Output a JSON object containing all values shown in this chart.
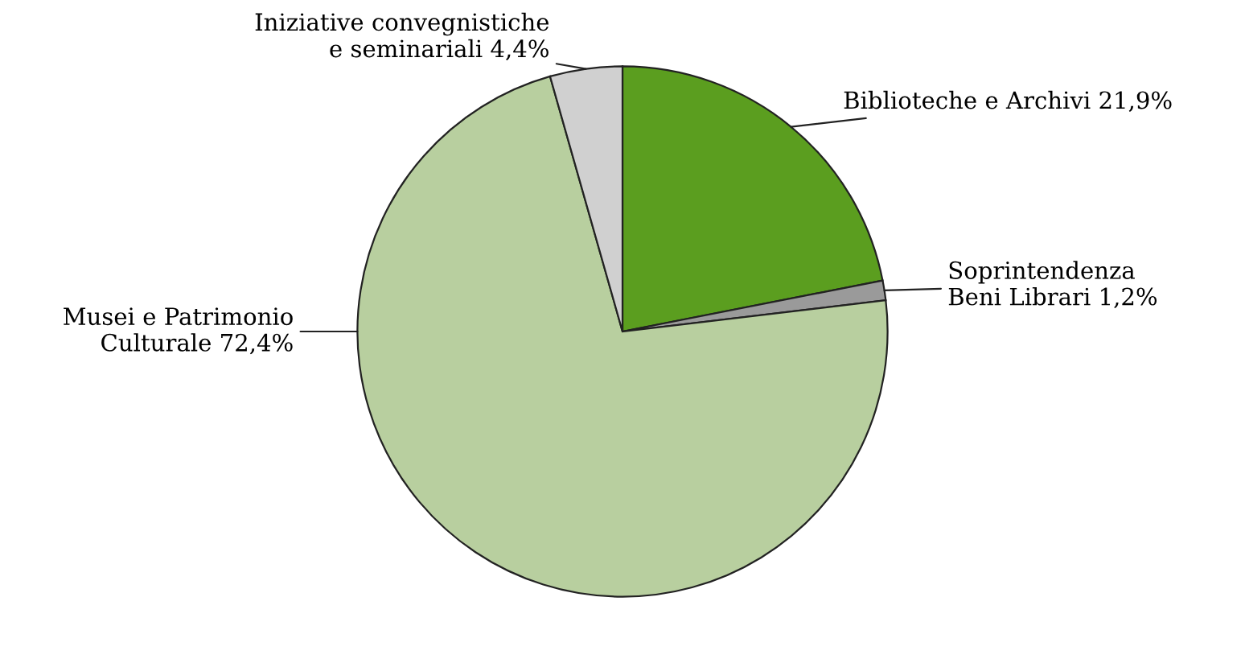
{
  "chart_data": {
    "type": "pie",
    "categories": [
      "Biblioteche e Archivi",
      "Soprintendenza\nBeni Librari",
      "Musei e Patrimonio\nCulturale",
      "Iniziative convegnistiche\ne seminariali"
    ],
    "values": [
      21.9,
      1.2,
      72.4,
      4.4
    ],
    "value_labels": [
      "21,9%",
      "1,2%",
      "72,4%",
      "4,4%"
    ],
    "colors": [
      "#5b9e1f",
      "#9a9a9a",
      "#b8cf9f",
      "#d0d0d0"
    ]
  }
}
